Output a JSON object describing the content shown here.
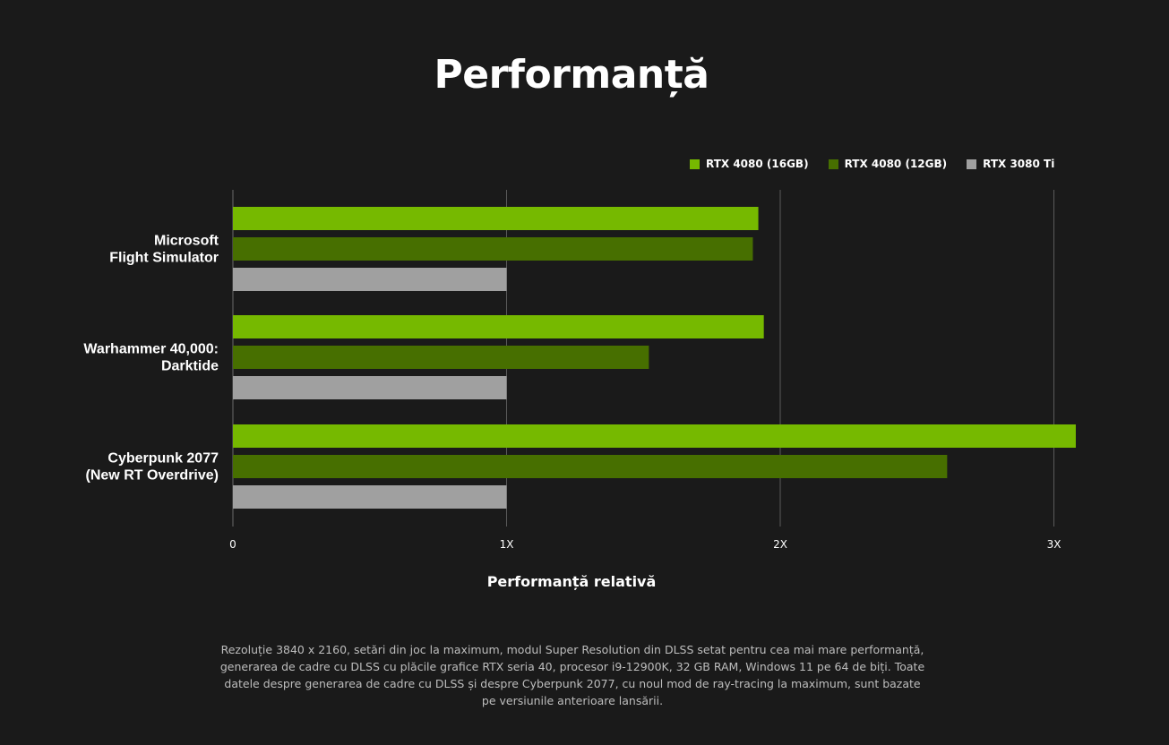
{
  "title": "Performanță",
  "legend": [
    {
      "name": "RTX 4080 (16GB)",
      "color": "#76b900"
    },
    {
      "name": "RTX 4080 (12GB)",
      "color": "#476f00"
    },
    {
      "name": "RTX 3080 Ti",
      "color": "#a0a0a0"
    }
  ],
  "chart_data": {
    "type": "bar",
    "orientation": "horizontal",
    "categories": [
      [
        "Microsoft",
        "Flight Simulator"
      ],
      [
        "Warhammer 40,000:",
        "Darktide"
      ],
      [
        "Cyberpunk 2077",
        "(New RT Overdrive)"
      ]
    ],
    "series": [
      {
        "name": "RTX 4080 (16GB)",
        "color": "#76b900",
        "values": [
          1.92,
          1.94,
          3.08
        ]
      },
      {
        "name": "RTX 4080 (12GB)",
        "color": "#476f00",
        "values": [
          1.9,
          1.52,
          2.61
        ]
      },
      {
        "name": "RTX 3080 Ti",
        "color": "#a0a0a0",
        "values": [
          1.0,
          1.0,
          1.0
        ]
      }
    ],
    "xlim": [
      0,
      3.2
    ],
    "xticks": [
      {
        "value": 0,
        "label": "0"
      },
      {
        "value": 1,
        "label": "1X"
      },
      {
        "value": 2,
        "label": "2X"
      },
      {
        "value": 3,
        "label": "3X"
      }
    ],
    "xlabel": "Performanță relativă",
    "grid": true,
    "legend_position": "top-right"
  },
  "footnote": "Rezoluție 3840 x 2160, setări din joc la maximum, modul Super Resolution din DLSS setat pentru cea mai mare performanță, generarea de cadre cu DLSS cu plăcile grafice RTX seria 40, procesor i9-12900K, 32 GB RAM, Windows 11 pe 64 de biți. Toate datele despre generarea de cadre cu DLSS și despre Cyberpunk 2077, cu noul mod de ray-tracing la maximum, sunt bazate pe versiunile anterioare lansării."
}
